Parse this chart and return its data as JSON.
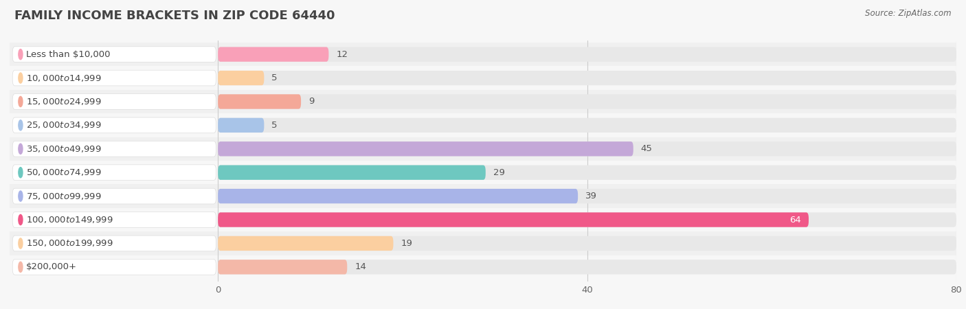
{
  "title": "FAMILY INCOME BRACKETS IN ZIP CODE 64440",
  "source": "Source: ZipAtlas.com",
  "categories": [
    "Less than $10,000",
    "$10,000 to $14,999",
    "$15,000 to $24,999",
    "$25,000 to $34,999",
    "$35,000 to $49,999",
    "$50,000 to $74,999",
    "$75,000 to $99,999",
    "$100,000 to $149,999",
    "$150,000 to $199,999",
    "$200,000+"
  ],
  "values": [
    12,
    5,
    9,
    5,
    45,
    29,
    39,
    64,
    19,
    14
  ],
  "bar_colors": [
    "#F9A0B8",
    "#FBCFA0",
    "#F4A898",
    "#A8C4E8",
    "#C4A8D8",
    "#6EC8C0",
    "#A8B4E8",
    "#F05888",
    "#FBCFA0",
    "#F4B8A8"
  ],
  "xlim_data": [
    0,
    80
  ],
  "xticks": [
    0,
    40,
    80
  ],
  "background_color": "#f7f7f7",
  "bar_bg_color": "#e8e8e8",
  "label_bg_color": "#ffffff",
  "title_fontsize": 13,
  "label_fontsize": 9.5,
  "value_fontsize": 9.5,
  "value_color_inside": "#ffffff",
  "value_color_outside": "#555555"
}
